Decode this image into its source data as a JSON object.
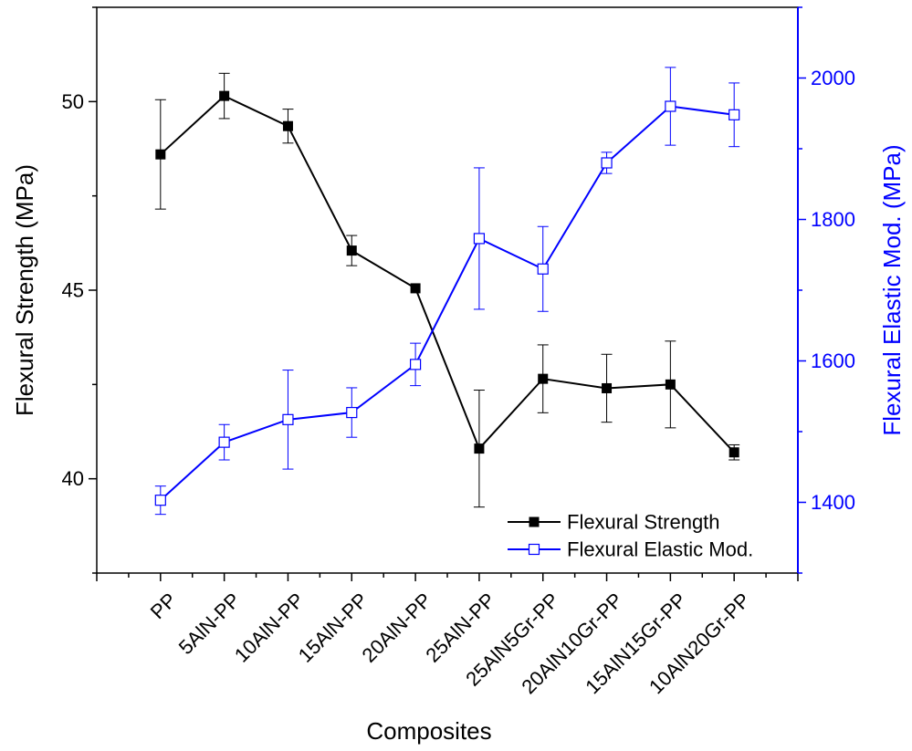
{
  "chart_data": {
    "type": "line",
    "title": "",
    "xlabel": "Composites",
    "categories": [
      "PP",
      "5AlN-PP",
      "10AlN-PP",
      "15AlN-PP",
      "20AlN-PP",
      "25AlN-PP",
      "25AlN5Gr-PP",
      "20AlN10Gr-PP",
      "15AlN15Gr-PP",
      "10AlN20Gr-PP"
    ],
    "y_left": {
      "label": "Flexural Strength (MPa)",
      "range": [
        37.5,
        52.5
      ],
      "ticks": [
        40,
        45,
        50
      ],
      "color": "#000000"
    },
    "y_right": {
      "label": "Flexural Elastic Mod. (MPa)",
      "range": [
        1300,
        2100
      ],
      "ticks": [
        1400,
        1600,
        1800,
        2000
      ],
      "color": "#0000ff"
    },
    "series": [
      {
        "name": "Flexural Strength",
        "axis": "left",
        "color": "#000000",
        "marker": "filled-square",
        "values": [
          48.6,
          50.15,
          49.35,
          46.05,
          45.05,
          40.8,
          42.65,
          42.4,
          42.5,
          40.7
        ],
        "errors": [
          1.45,
          0.6,
          0.45,
          0.4,
          0.0,
          1.55,
          0.9,
          0.9,
          1.15,
          0.2
        ]
      },
      {
        "name": "Flexural Elastic Mod.",
        "axis": "right",
        "color": "#0000ff",
        "marker": "open-square",
        "values": [
          1403,
          1485,
          1517,
          1527,
          1595,
          1773,
          1730,
          1880,
          1960,
          1948
        ],
        "errors": [
          20,
          25,
          70,
          35,
          30,
          100,
          60,
          15,
          55,
          45
        ]
      }
    ],
    "legend": {
      "position": "bottom-right",
      "entries": [
        "Flexural Strength",
        "Flexural Elastic Mod."
      ]
    },
    "grid": false
  }
}
